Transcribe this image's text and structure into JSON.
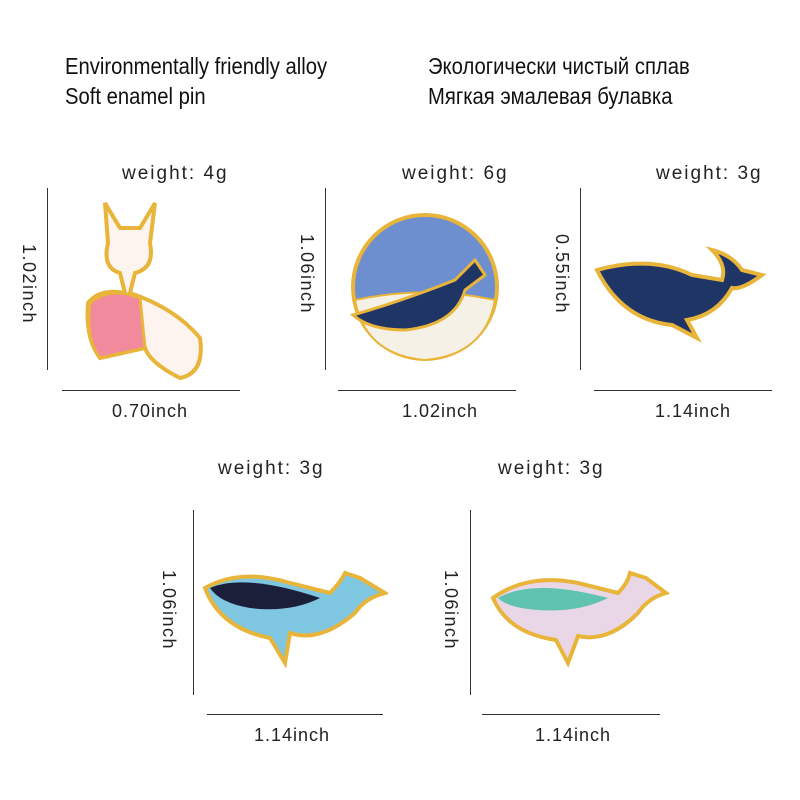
{
  "header": {
    "en_line1": "Environmentally friendly alloy",
    "en_line2": "Soft enamel pin",
    "ru_line1": "Экологически чистый сплав",
    "ru_line2": "Мягкая эмалевая булавка"
  },
  "pins": [
    {
      "weight": "weight:  4g",
      "height": "1.02inch",
      "width": "0.70inch",
      "icon": "fox-girl-pin"
    },
    {
      "weight": "weight:  6g",
      "height": "1.06inch",
      "width": "1.02inch",
      "icon": "whale-circle-pin"
    },
    {
      "weight": "weight:  3g",
      "height": "0.55inch",
      "width": "1.14inch",
      "icon": "starry-whale-pin"
    },
    {
      "weight": "weight:  3g",
      "height": "1.06inch",
      "width": "1.14inch",
      "icon": "blue-whale-pin"
    },
    {
      "weight": "weight:  3g",
      "height": "1.06inch",
      "width": "1.14inch",
      "icon": "pastel-whale-pin"
    }
  ],
  "colors": {
    "gold": "#e8b53a",
    "navy": "#1f3566",
    "pink": "#f08a9c",
    "sky": "#6d8fcf"
  }
}
